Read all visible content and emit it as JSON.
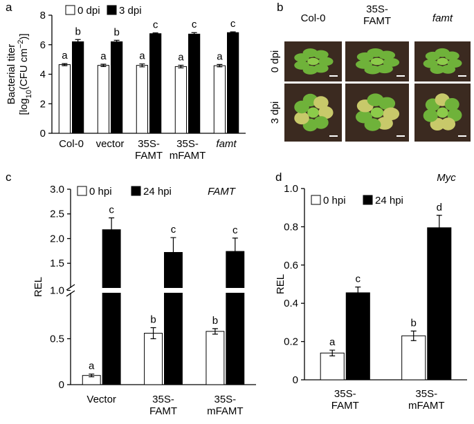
{
  "chart_data": [
    {
      "type": "bar",
      "panel_label": "a",
      "ylabel": [
        "Bacterial titer",
        "[log",
        "10",
        "(CFU cm",
        "−2",
        ")]"
      ],
      "categories": [
        "Col-0",
        "vector",
        "35S-\nFAMT",
        "35S-\nmFAMT",
        "famt"
      ],
      "series": [
        {
          "name": "0 dpi",
          "color": "#ffffff",
          "values": [
            4.65,
            4.6,
            4.6,
            4.52,
            4.58
          ],
          "errors": [
            0.07,
            0.08,
            0.1,
            0.09,
            0.08
          ],
          "letters": [
            "a",
            "a",
            "a",
            "a",
            "a"
          ]
        },
        {
          "name": "3 dpi",
          "color": "#000000",
          "values": [
            6.2,
            6.2,
            6.75,
            6.72,
            6.82
          ],
          "errors": [
            0.15,
            0.1,
            0.05,
            0.1,
            0.05
          ],
          "letters": [
            "b",
            "b",
            "c",
            "c",
            "c"
          ]
        }
      ],
      "ylim": [
        0,
        8
      ],
      "yticks": [
        0,
        2,
        4,
        6,
        8
      ]
    },
    {
      "type": "bar",
      "panel_label": "c",
      "ylabel": [
        "REL"
      ],
      "annotation": "FAMT",
      "categories": [
        "Vector",
        "35S-\nFAMT",
        "35S-\nmFAMT"
      ],
      "series": [
        {
          "name": "0 hpi",
          "color": "#ffffff",
          "values": [
            0.1,
            0.56,
            0.58
          ],
          "errors": [
            0.015,
            0.06,
            0.03
          ],
          "letters": [
            "a",
            "b",
            "b"
          ]
        },
        {
          "name": "24 hpi",
          "color": "#000000",
          "values": [
            2.18,
            1.72,
            1.74
          ],
          "errors": [
            0.24,
            0.3,
            0.27
          ],
          "letters": [
            "c",
            "c",
            "c"
          ]
        }
      ],
      "ylim": [
        0,
        3
      ],
      "ybreak": 1,
      "yticks": [
        0,
        0.5,
        {
          "value": 1,
          "label": "1.0"
        },
        1.5,
        {
          "value": 2,
          "label": "2.0"
        },
        2.5,
        {
          "value": 3,
          "label": "3.0"
        }
      ]
    },
    {
      "type": "bar",
      "panel_label": "d",
      "ylabel": [
        "REL"
      ],
      "annotation": "Myc",
      "categories": [
        "35S-\nFAMT",
        "35S-\nmFAMT"
      ],
      "series": [
        {
          "name": "0 hpi",
          "color": "#ffffff",
          "values": [
            0.14,
            0.23
          ],
          "errors": [
            0.015,
            0.025
          ],
          "letters": [
            "a",
            "b"
          ]
        },
        {
          "name": "24 hpi",
          "color": "#000000",
          "values": [
            0.455,
            0.795
          ],
          "errors": [
            0.03,
            0.065
          ],
          "letters": [
            "c",
            "d"
          ]
        }
      ],
      "ylim": [
        0,
        1
      ],
      "yticks": [
        0,
        0.2,
        0.4,
        0.6,
        0.8,
        {
          "value": 1,
          "label": "1.0"
        }
      ]
    }
  ],
  "photo_panel": {
    "panel_label": "b",
    "columns": [
      "Col-0",
      "35S-\nFAMT",
      "famt"
    ],
    "rows": [
      "0 dpi",
      "3 dpi"
    ]
  }
}
